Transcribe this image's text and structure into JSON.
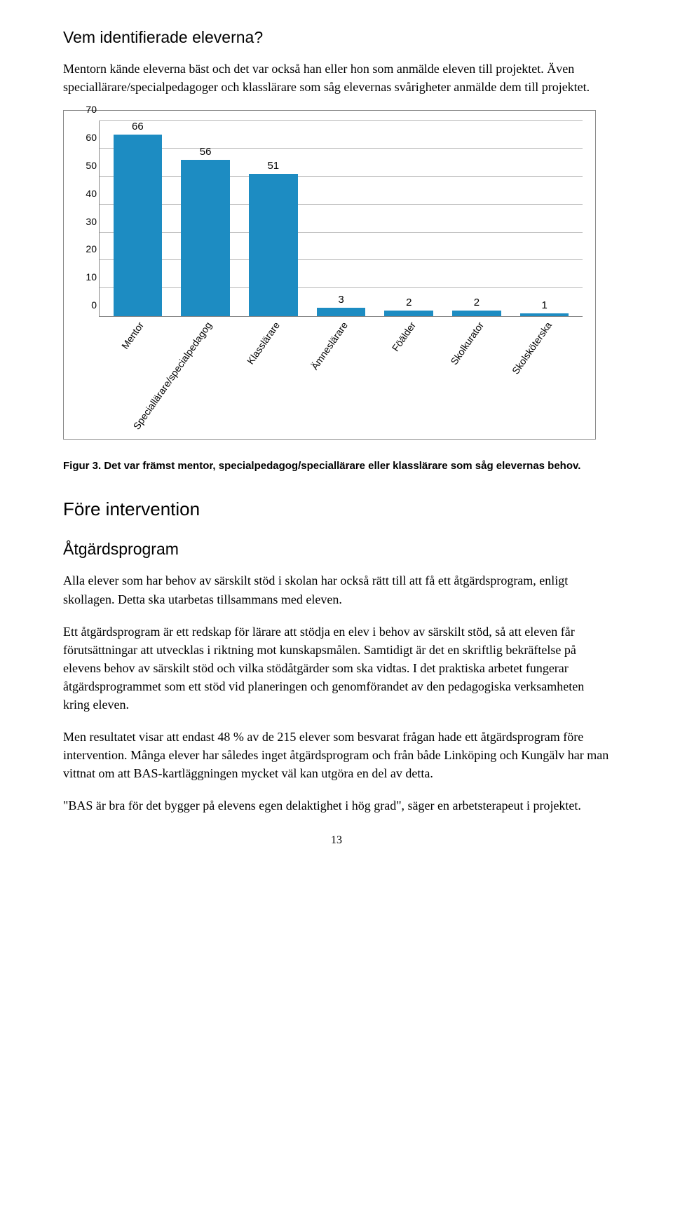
{
  "heading1": "Vem identifierade eleverna?",
  "para1": "Mentorn kände eleverna bäst och det var också han eller hon som anmälde eleven till projektet. Även speciallärare/specialpedagoger och klasslärare som såg elevernas svårigheter anmälde dem till projektet.",
  "chart": {
    "type": "bar",
    "categories": [
      "Mentor",
      "Speciallärare/specialpedagog",
      "Klasslärare",
      "Ämneslärare",
      "Föälder",
      "Skolkurator",
      "Skolsköterska"
    ],
    "values": [
      66,
      56,
      51,
      3,
      2,
      2,
      1
    ],
    "bar_color": "#1d8cc2",
    "ymax": 70,
    "ytick_step": 10,
    "grid_color": "#bbbbbb",
    "axis_color": "#888888",
    "text_color": "#000000",
    "label_fontsize": 14,
    "value_fontsize": 15,
    "background_color": "#ffffff"
  },
  "figure_caption": "Figur 3. Det var främst mentor, specialpedagog/speciallärare eller klasslärare som såg elevernas behov.",
  "heading2": "Före intervention",
  "subheading": "Åtgärdsprogram",
  "para2": "Alla elever som har behov av särskilt stöd i skolan har också rätt till att få ett åtgärdsprogram, enligt skollagen. Detta ska utarbetas tillsammans med eleven.",
  "para3": "Ett åtgärdsprogram är ett redskap för lärare att stödja en elev i behov av särskilt stöd, så att eleven får förutsättningar att utvecklas i riktning mot kunskapsmålen. Samtidigt är det en skriftlig bekräftelse på elevens behov av särskilt stöd och vilka stödåtgärder som ska vidtas. I det praktiska arbetet fungerar åtgärdsprogrammet som ett stöd vid planeringen och genomförandet av den pedagogiska verksamheten kring eleven.",
  "para4": "Men resultatet visar att endast 48 % av de 215 elever som besvarat frågan hade ett åtgärdsprogram före intervention. Många elever har således inget åtgärdsprogram och från både Linköping och Kungälv har man vittnat om att BAS-kartläggningen mycket väl kan utgöra en del av detta.",
  "quote": "\"BAS är bra för det bygger på elevens egen delaktighet i hög grad\", säger en arbetsterapeut i projektet.",
  "page_number": "13"
}
